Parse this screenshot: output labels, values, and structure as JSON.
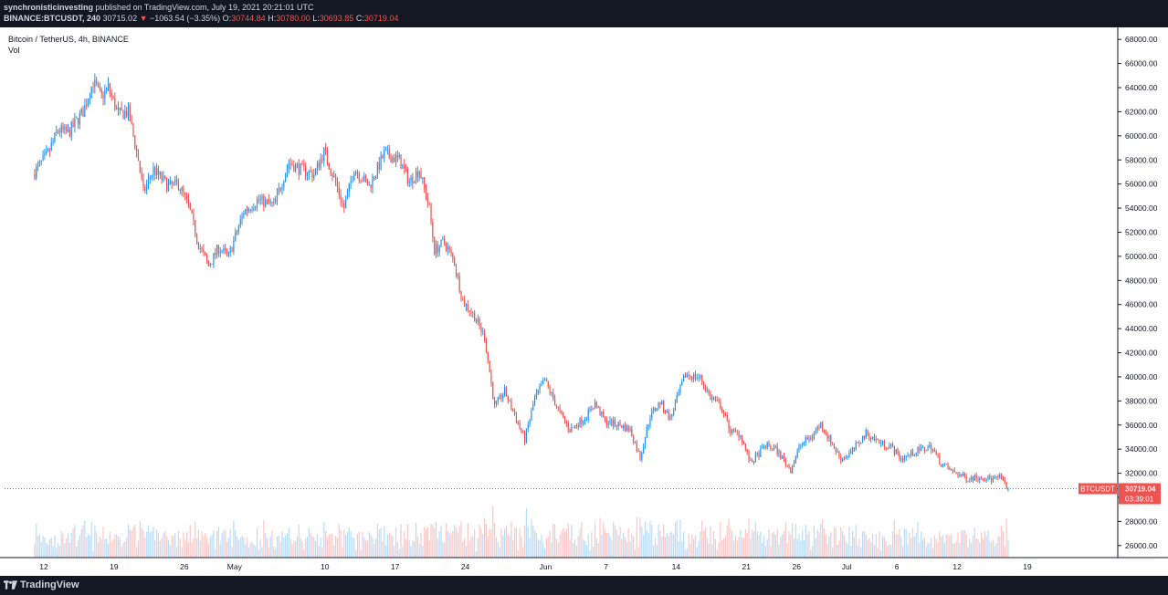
{
  "header": {
    "author": "synchronisticinvesting",
    "published_text": "published on TradingView.com, July 19, 2021 20:21:01 UTC",
    "symbol_line": "BINANCE:BTCUSDT, 240",
    "last": "30715.02",
    "change_arrow": "▼",
    "change": "−1063.54 (−3.35%)",
    "o_label": "O:",
    "o_value": "30744.84",
    "h_label": "H:",
    "h_value": "30780.00",
    "l_label": "L:",
    "l_value": "30693.85",
    "c_label": "C:",
    "c_value": "30719.04"
  },
  "legend": {
    "title": "Bitcoin / TetherUS, 4h, BINANCE",
    "vol": "Vol"
  },
  "price_tag": {
    "symbol": "BTCUSDT",
    "price": "30719.04",
    "countdown": "03:39:01"
  },
  "footer": {
    "brand": "TradingView"
  },
  "colors": {
    "up": "#2196f3",
    "down": "#ef5350",
    "bg_dark": "#131722"
  },
  "chart_data": {
    "type": "candlestick",
    "timeframe": "4h",
    "ylim": [
      25000,
      69000
    ],
    "y_ticks": [
      26000,
      28000,
      30000,
      32000,
      34000,
      36000,
      38000,
      40000,
      42000,
      44000,
      46000,
      48000,
      50000,
      52000,
      54000,
      56000,
      58000,
      60000,
      62000,
      64000,
      66000,
      68000
    ],
    "y_tick_labels": [
      "26000.00",
      "28000.00",
      "30000.00",
      "32000.00",
      "34000.00",
      "36000.00",
      "38000.00",
      "40000.00",
      "42000.00",
      "44000.00",
      "46000.00",
      "48000.00",
      "50000.00",
      "52000.00",
      "54000.00",
      "56000.00",
      "58000.00",
      "60000.00",
      "62000.00",
      "64000.00",
      "66000.00",
      "68000.00"
    ],
    "x_tick_labels": [
      "12",
      "19",
      "26",
      "May",
      "10",
      "17",
      "24",
      "Jun",
      "7",
      "14",
      "21",
      "26",
      "Jul",
      "6",
      "12",
      "19"
    ],
    "x_ticks_days": [
      1,
      8,
      15,
      20,
      29,
      36,
      43,
      51,
      57,
      64,
      71,
      76,
      81,
      86,
      92,
      99
    ],
    "start_date": "2021-04-11",
    "last_close": 30719.04,
    "price_anchors": [
      [
        0,
        56800
      ],
      [
        1.5,
        58500
      ],
      [
        2.5,
        60500
      ],
      [
        3.5,
        60200
      ],
      [
        5,
        62000
      ],
      [
        6,
        64500
      ],
      [
        6.8,
        63200
      ],
      [
        7.5,
        64000
      ],
      [
        8.5,
        61800
      ],
      [
        9.5,
        62000
      ],
      [
        10.5,
        58000
      ],
      [
        11,
        55300
      ],
      [
        12,
        57200
      ],
      [
        13.5,
        55800
      ],
      [
        14.5,
        56000
      ],
      [
        15.5,
        54200
      ],
      [
        16.5,
        51000
      ],
      [
        17.5,
        49200
      ],
      [
        18.5,
        50700
      ],
      [
        19.5,
        50000
      ],
      [
        21,
        53700
      ],
      [
        22.5,
        54700
      ],
      [
        24,
        54200
      ],
      [
        25.5,
        57800
      ],
      [
        26.5,
        57300
      ],
      [
        28,
        56800
      ],
      [
        29,
        58700
      ],
      [
        30,
        56500
      ],
      [
        31,
        54000
      ],
      [
        32,
        57300
      ],
      [
        33.5,
        55800
      ],
      [
        35,
        58500
      ],
      [
        36.5,
        58000
      ],
      [
        37.5,
        56200
      ],
      [
        38.5,
        57200
      ],
      [
        39.5,
        54000
      ],
      [
        40,
        50500
      ],
      [
        41,
        51200
      ],
      [
        42,
        49500
      ],
      [
        42.8,
        46300
      ],
      [
        44,
        45000
      ],
      [
        45,
        43300
      ],
      [
        46,
        37500
      ],
      [
        47,
        38800
      ],
      [
        48,
        36800
      ],
      [
        49,
        34800
      ],
      [
        50,
        38200
      ],
      [
        51,
        39700
      ],
      [
        52.5,
        37000
      ],
      [
        53.5,
        35600
      ],
      [
        55,
        36600
      ],
      [
        56,
        37800
      ],
      [
        57,
        36300
      ],
      [
        58.5,
        36000
      ],
      [
        59.5,
        35600
      ],
      [
        60.5,
        33300
      ],
      [
        61.5,
        36800
      ],
      [
        62.5,
        37900
      ],
      [
        63.5,
        36500
      ],
      [
        65,
        40200
      ],
      [
        66.5,
        39900
      ],
      [
        67.5,
        38300
      ],
      [
        68.5,
        37600
      ],
      [
        69.5,
        35500
      ],
      [
        70.5,
        35200
      ],
      [
        71.5,
        32800
      ],
      [
        73,
        34300
      ],
      [
        74,
        34000
      ],
      [
        75.5,
        32300
      ],
      [
        76.5,
        34400
      ],
      [
        77.5,
        35000
      ],
      [
        78.5,
        36100
      ],
      [
        79.5,
        34600
      ],
      [
        80.5,
        33200
      ],
      [
        81.5,
        33700
      ],
      [
        83,
        35300
      ],
      [
        84.5,
        34500
      ],
      [
        85.5,
        34200
      ],
      [
        86.5,
        33200
      ],
      [
        88,
        33800
      ],
      [
        89.5,
        34200
      ],
      [
        90.5,
        32800
      ],
      [
        91.5,
        32200
      ],
      [
        93,
        31600
      ],
      [
        94.5,
        31700
      ],
      [
        95.5,
        31500
      ],
      [
        96.5,
        31600
      ],
      [
        97,
        30720
      ]
    ]
  }
}
